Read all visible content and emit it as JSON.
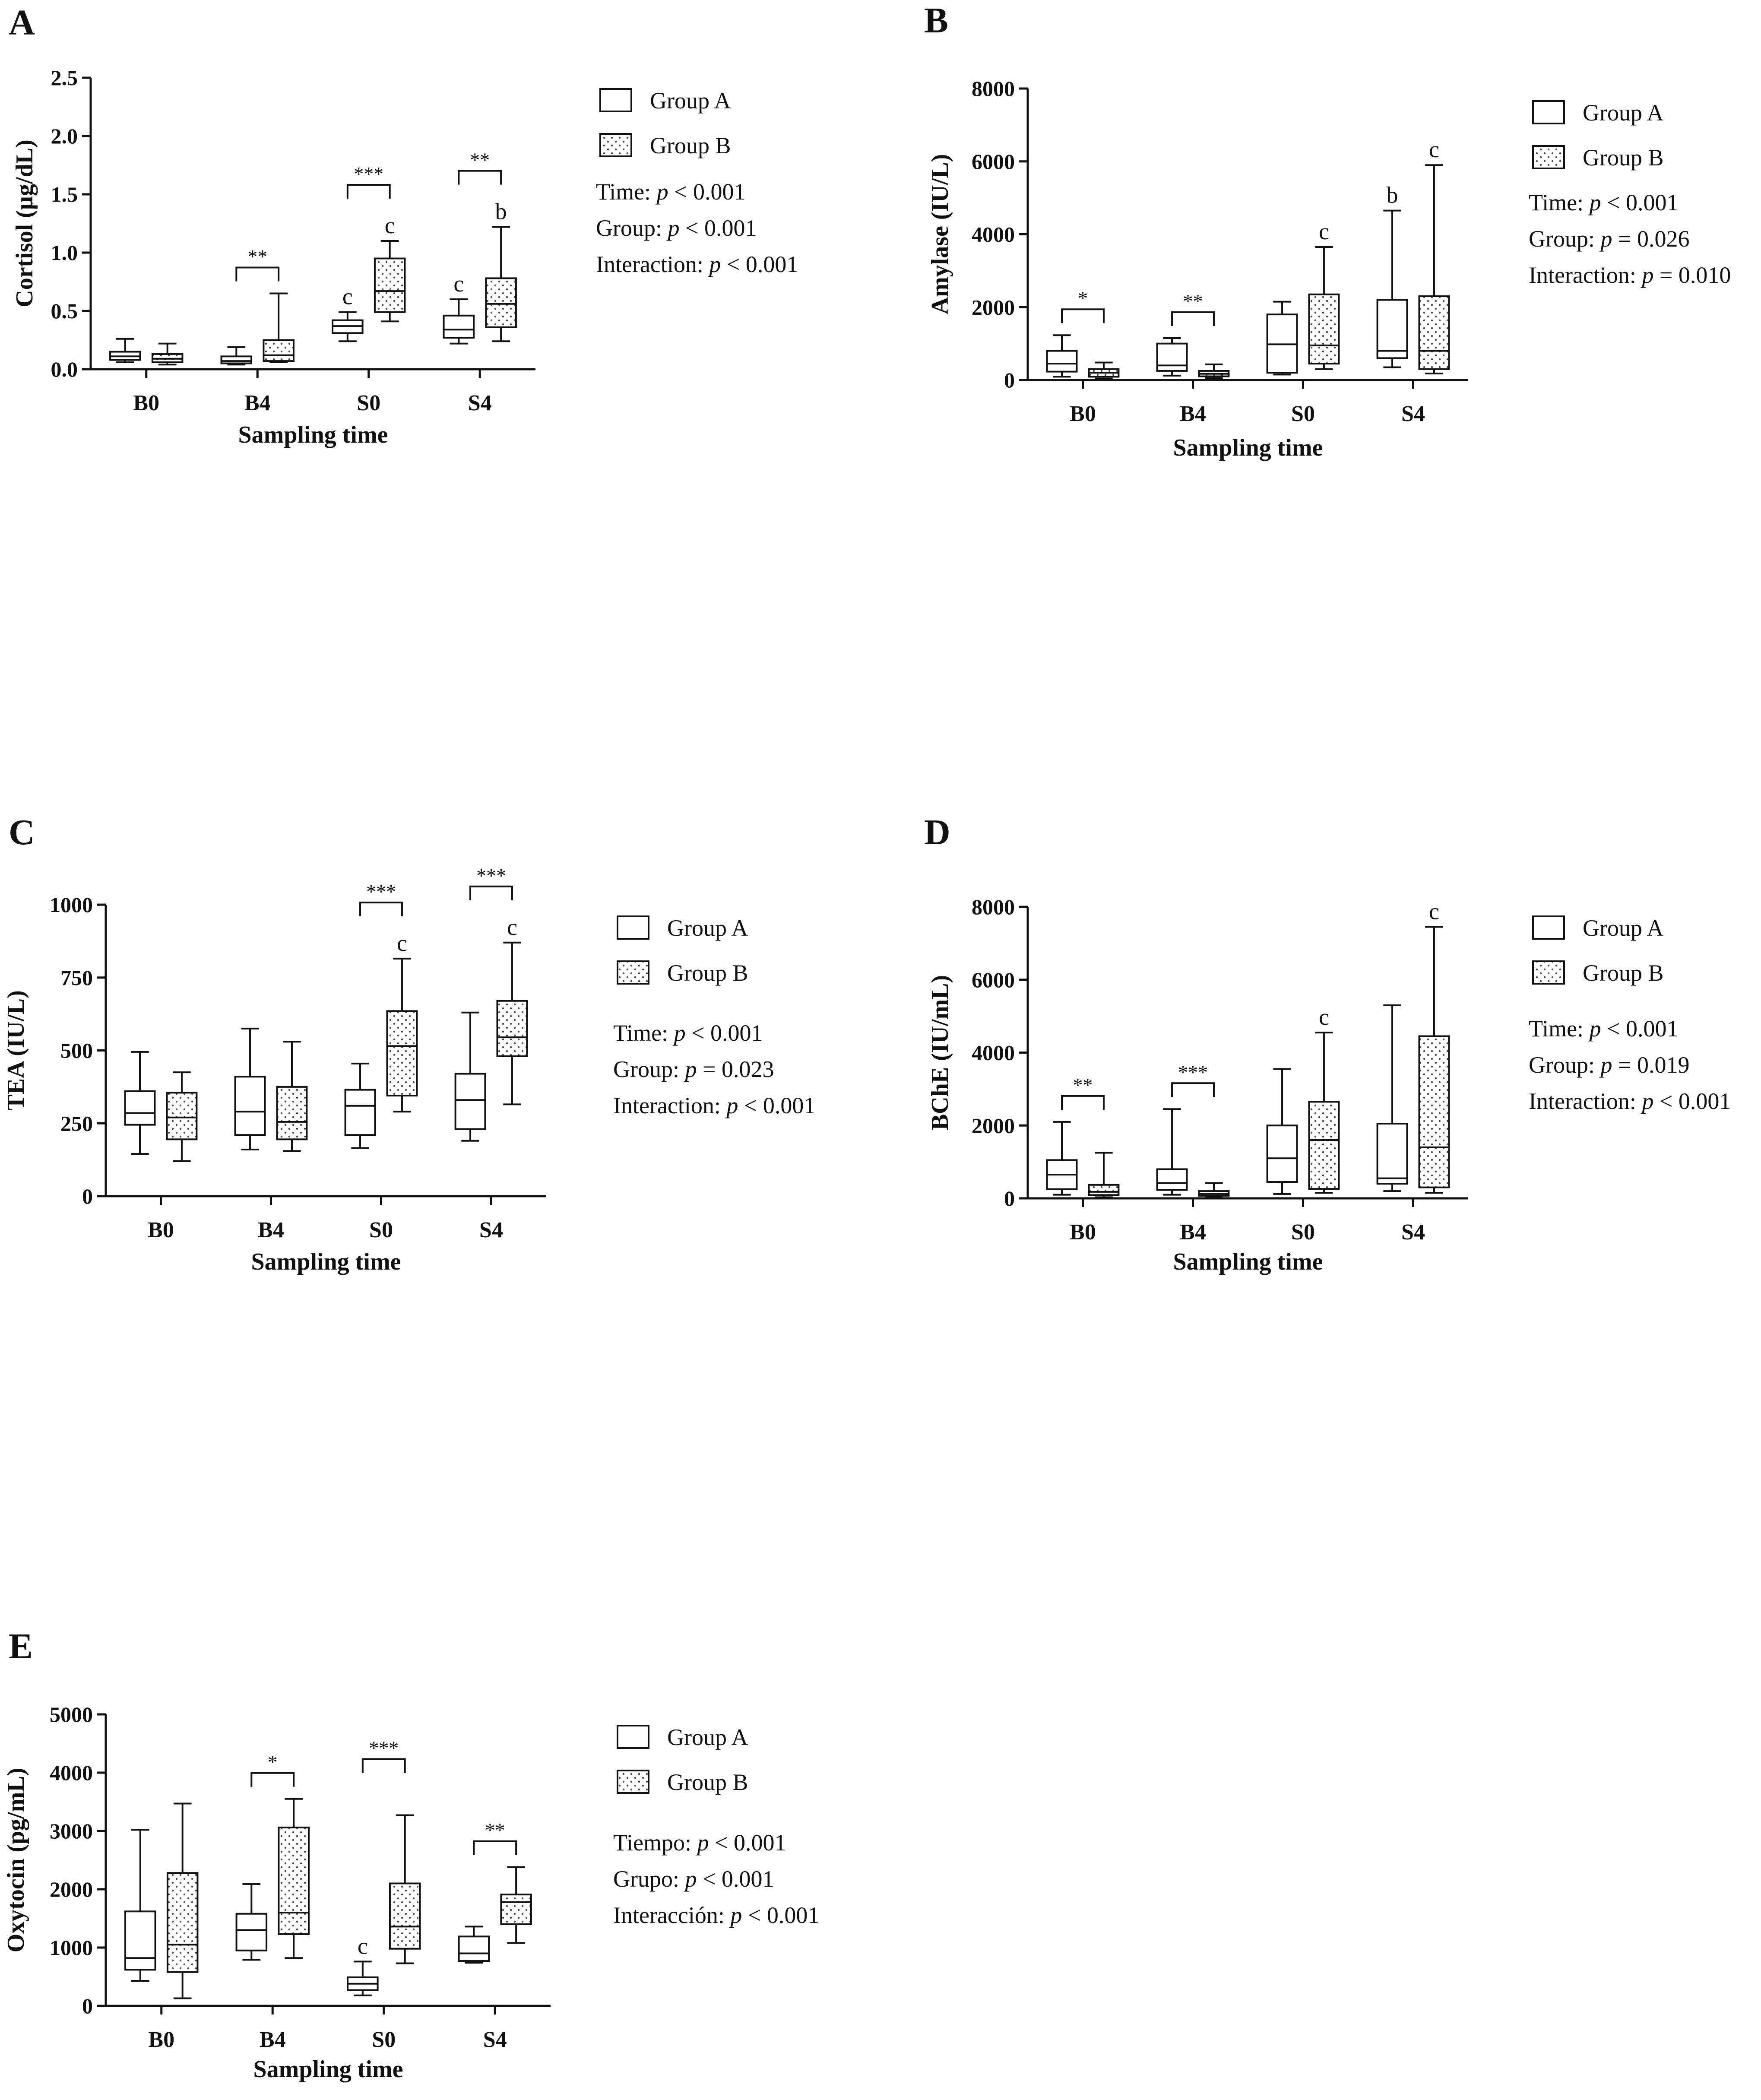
{
  "chart_data": [
    {
      "type": "boxplot",
      "panel": "A",
      "ylabel": "Cortisol (µg/dL)",
      "xlabel": "Sampling time",
      "categories": [
        "B0",
        "B4",
        "S0",
        "S4"
      ],
      "ylim": [
        0,
        2.5
      ],
      "yticks": [
        0.0,
        0.5,
        1.0,
        1.5,
        2.0,
        2.5
      ],
      "ytick_labels": [
        "0.0",
        "0.5",
        "1.0",
        "1.5",
        "2.0",
        "2.5"
      ],
      "series": [
        {
          "name": "Group A",
          "pattern": "plain",
          "boxes": [
            {
              "min": 0.06,
              "q1": 0.08,
              "median": 0.11,
              "q3": 0.15,
              "max": 0.26
            },
            {
              "min": 0.04,
              "q1": 0.05,
              "median": 0.07,
              "q3": 0.11,
              "max": 0.19
            },
            {
              "min": 0.24,
              "q1": 0.31,
              "median": 0.37,
              "q3": 0.42,
              "max": 0.49
            },
            {
              "min": 0.22,
              "q1": 0.27,
              "median": 0.34,
              "q3": 0.46,
              "max": 0.6
            }
          ]
        },
        {
          "name": "Group B",
          "pattern": "dotted",
          "boxes": [
            {
              "min": 0.04,
              "q1": 0.06,
              "median": 0.09,
              "q3": 0.13,
              "max": 0.22
            },
            {
              "min": 0.06,
              "q1": 0.07,
              "median": 0.12,
              "q3": 0.25,
              "max": 0.65
            },
            {
              "min": 0.41,
              "q1": 0.49,
              "median": 0.67,
              "q3": 0.95,
              "max": 1.1
            },
            {
              "min": 0.24,
              "q1": 0.36,
              "median": 0.56,
              "q3": 0.78,
              "max": 1.22
            }
          ]
        }
      ],
      "brackets": [
        {
          "category": "B4",
          "label": "**"
        },
        {
          "category": "S0",
          "label": "***"
        },
        {
          "category": "S4",
          "label": "**"
        }
      ],
      "letters": [
        {
          "category": "S0",
          "series": "Group A",
          "label": "c"
        },
        {
          "category": "S0",
          "series": "Group B",
          "label": "c"
        },
        {
          "category": "S4",
          "series": "Group A",
          "label": "c"
        },
        {
          "category": "S4",
          "series": "Group B",
          "label": "b"
        }
      ],
      "legend": [
        "Group A",
        "Group B"
      ],
      "stats": [
        {
          "term": "Time: ",
          "p": "p",
          "value": " < 0.001"
        },
        {
          "term": "Group: ",
          "p": "p",
          "value": " < 0.001"
        },
        {
          "term": "Interaction: ",
          "p": "p",
          "value": " < 0.001"
        }
      ]
    },
    {
      "type": "boxplot",
      "panel": "B",
      "ylabel": "Amylase (IU/L)",
      "xlabel": "Sampling time",
      "categories": [
        "B0",
        "B4",
        "S0",
        "S4"
      ],
      "ylim": [
        0,
        8000
      ],
      "yticks": [
        0,
        2000,
        4000,
        6000,
        8000
      ],
      "ytick_labels": [
        "0",
        "2000",
        "4000",
        "6000",
        "8000"
      ],
      "series": [
        {
          "name": "Group A",
          "pattern": "plain",
          "boxes": [
            {
              "min": 90,
              "q1": 230,
              "median": 450,
              "q3": 800,
              "max": 1230
            },
            {
              "min": 120,
              "q1": 250,
              "median": 400,
              "q3": 1000,
              "max": 1150
            },
            {
              "min": 150,
              "q1": 200,
              "median": 980,
              "q3": 1800,
              "max": 2150
            },
            {
              "min": 350,
              "q1": 600,
              "median": 800,
              "q3": 2200,
              "max": 4650
            }
          ]
        },
        {
          "name": "Group B",
          "pattern": "dotted",
          "boxes": [
            {
              "min": 40,
              "q1": 90,
              "median": 200,
              "q3": 300,
              "max": 480
            },
            {
              "min": 50,
              "q1": 100,
              "median": 170,
              "q3": 250,
              "max": 430
            },
            {
              "min": 300,
              "q1": 450,
              "median": 950,
              "q3": 2350,
              "max": 3650
            },
            {
              "min": 180,
              "q1": 300,
              "median": 800,
              "q3": 2300,
              "max": 5900
            }
          ]
        }
      ],
      "brackets": [
        {
          "category": "B0",
          "label": "*"
        },
        {
          "category": "B4",
          "label": "**"
        }
      ],
      "letters": [
        {
          "category": "S0",
          "series": "Group B",
          "label": "c"
        },
        {
          "category": "S4",
          "series": "Group A",
          "label": "b"
        },
        {
          "category": "S4",
          "series": "Group B",
          "label": "c"
        }
      ],
      "legend": [
        "Group A",
        "Group B"
      ],
      "stats": [
        {
          "term": "Time: ",
          "p": "p",
          "value": " < 0.001"
        },
        {
          "term": "Group: ",
          "p": "p",
          "value": " = 0.026"
        },
        {
          "term": "Interaction: ",
          "p": "p",
          "value": " = 0.010"
        }
      ]
    },
    {
      "type": "boxplot",
      "panel": "C",
      "ylabel": "TEA (IU/L)",
      "xlabel": "Sampling time",
      "categories": [
        "B0",
        "B4",
        "S0",
        "S4"
      ],
      "ylim": [
        0,
        1000
      ],
      "yticks": [
        0,
        250,
        500,
        750,
        1000
      ],
      "ytick_labels": [
        "0",
        "250",
        "500",
        "750",
        "1000"
      ],
      "series": [
        {
          "name": "Group A",
          "pattern": "plain",
          "boxes": [
            {
              "min": 145,
              "q1": 245,
              "median": 285,
              "q3": 360,
              "max": 495
            },
            {
              "min": 160,
              "q1": 210,
              "median": 290,
              "q3": 410,
              "max": 575
            },
            {
              "min": 165,
              "q1": 210,
              "median": 310,
              "q3": 365,
              "max": 455
            },
            {
              "min": 190,
              "q1": 230,
              "median": 330,
              "q3": 420,
              "max": 630
            }
          ]
        },
        {
          "name": "Group B",
          "pattern": "dotted",
          "boxes": [
            {
              "min": 120,
              "q1": 195,
              "median": 270,
              "q3": 355,
              "max": 425
            },
            {
              "min": 155,
              "q1": 195,
              "median": 255,
              "q3": 375,
              "max": 530
            },
            {
              "min": 290,
              "q1": 345,
              "median": 515,
              "q3": 635,
              "max": 815
            },
            {
              "min": 315,
              "q1": 480,
              "median": 545,
              "q3": 670,
              "max": 870
            }
          ]
        }
      ],
      "brackets": [
        {
          "category": "S0",
          "label": "***"
        },
        {
          "category": "S4",
          "label": "***"
        }
      ],
      "letters": [
        {
          "category": "S0",
          "series": "Group B",
          "label": "c"
        },
        {
          "category": "S4",
          "series": "Group B",
          "label": "c"
        }
      ],
      "legend": [
        "Group A",
        "Group B"
      ],
      "stats": [
        {
          "term": "Time: ",
          "p": "p",
          "value": " < 0.001"
        },
        {
          "term": "Group: ",
          "p": "p",
          "value": " = 0.023"
        },
        {
          "term": "Interaction: ",
          "p": "p",
          "value": " < 0.001"
        }
      ]
    },
    {
      "type": "boxplot",
      "panel": "D",
      "ylabel": "BChE (IU/mL)",
      "xlabel": "Sampling time",
      "categories": [
        "B0",
        "B4",
        "S0",
        "S4"
      ],
      "ylim": [
        0,
        8000
      ],
      "yticks": [
        0,
        2000,
        4000,
        6000,
        8000
      ],
      "ytick_labels": [
        "0",
        "2000",
        "4000",
        "6000",
        "8000"
      ],
      "series": [
        {
          "name": "Group A",
          "pattern": "plain",
          "boxes": [
            {
              "min": 100,
              "q1": 250,
              "median": 650,
              "q3": 1050,
              "max": 2100
            },
            {
              "min": 100,
              "q1": 230,
              "median": 420,
              "q3": 800,
              "max": 2450
            },
            {
              "min": 120,
              "q1": 450,
              "median": 1100,
              "q3": 2000,
              "max": 3550
            },
            {
              "min": 200,
              "q1": 400,
              "median": 550,
              "q3": 2050,
              "max": 5300
            }
          ]
        },
        {
          "name": "Group B",
          "pattern": "dotted",
          "boxes": [
            {
              "min": 30,
              "q1": 90,
              "median": 180,
              "q3": 370,
              "max": 1250
            },
            {
              "min": 30,
              "q1": 70,
              "median": 120,
              "q3": 200,
              "max": 420
            },
            {
              "min": 150,
              "q1": 260,
              "median": 1600,
              "q3": 2650,
              "max": 4550
            },
            {
              "min": 150,
              "q1": 300,
              "median": 1400,
              "q3": 4450,
              "max": 7450
            }
          ]
        }
      ],
      "brackets": [
        {
          "category": "B0",
          "label": "**"
        },
        {
          "category": "B4",
          "label": "***"
        }
      ],
      "letters": [
        {
          "category": "S0",
          "series": "Group B",
          "label": "c"
        },
        {
          "category": "S4",
          "series": "Group B",
          "label": "c"
        }
      ],
      "legend": [
        "Group A",
        "Group B"
      ],
      "stats": [
        {
          "term": "Time: ",
          "p": "p",
          "value": " < 0.001"
        },
        {
          "term": "Group: ",
          "p": "p",
          "value": " = 0.019"
        },
        {
          "term": "Interaction: ",
          "p": "p",
          "value": " < 0.001"
        }
      ]
    },
    {
      "type": "boxplot",
      "panel": "E",
      "ylabel": "Oxytocin (pg/mL)",
      "xlabel": "Sampling time",
      "categories": [
        "B0",
        "B4",
        "S0",
        "S4"
      ],
      "ylim": [
        0,
        5000
      ],
      "yticks": [
        0,
        1000,
        2000,
        3000,
        4000,
        5000
      ],
      "ytick_labels": [
        "0",
        "1000",
        "2000",
        "3000",
        "4000",
        "5000"
      ],
      "series": [
        {
          "name": "Group A",
          "pattern": "plain",
          "boxes": [
            {
              "min": 430,
              "q1": 620,
              "median": 820,
              "q3": 1620,
              "max": 3020
            },
            {
              "min": 790,
              "q1": 950,
              "median": 1300,
              "q3": 1580,
              "max": 2090
            },
            {
              "min": 180,
              "q1": 270,
              "median": 380,
              "q3": 490,
              "max": 760
            },
            {
              "min": 740,
              "q1": 770,
              "median": 900,
              "q3": 1190,
              "max": 1360
            }
          ]
        },
        {
          "name": "Group B",
          "pattern": "dotted",
          "boxes": [
            {
              "min": 130,
              "q1": 580,
              "median": 1050,
              "q3": 2280,
              "max": 3470
            },
            {
              "min": 820,
              "q1": 1230,
              "median": 1600,
              "q3": 3060,
              "max": 3550
            },
            {
              "min": 730,
              "q1": 980,
              "median": 1360,
              "q3": 2100,
              "max": 3270
            },
            {
              "min": 1080,
              "q1": 1400,
              "median": 1780,
              "q3": 1910,
              "max": 2380
            }
          ]
        }
      ],
      "brackets": [
        {
          "category": "B4",
          "label": "*"
        },
        {
          "category": "S0",
          "label": "***"
        },
        {
          "category": "S4",
          "label": "**"
        }
      ],
      "letters": [
        {
          "category": "S0",
          "series": "Group A",
          "label": "c"
        }
      ],
      "legend": [
        "Group A",
        "Group B"
      ],
      "stats": [
        {
          "term": "Tiempo: ",
          "p": "p",
          "value": " < 0.001"
        },
        {
          "term": "Grupo: ",
          "p": "p",
          "value": " < 0.001"
        },
        {
          "term": "Interacción: ",
          "p": "p",
          "value": " < 0.001"
        }
      ]
    }
  ]
}
